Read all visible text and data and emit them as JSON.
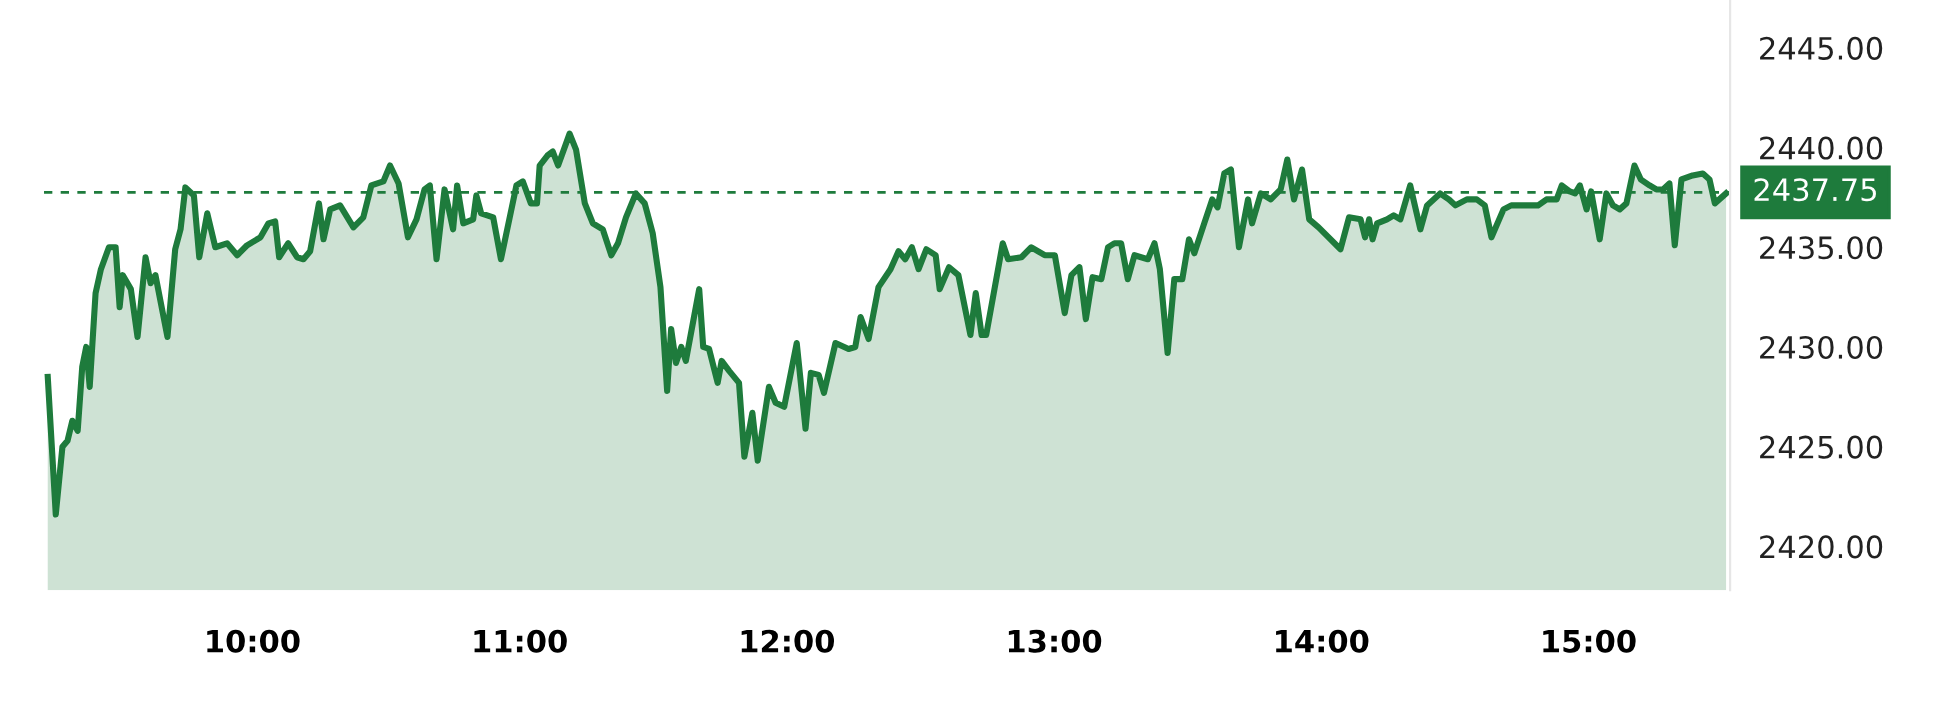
{
  "chart_data": {
    "type": "area",
    "x": [
      9.234,
      9.264,
      9.289,
      9.308,
      9.326,
      9.346,
      9.363,
      9.378,
      9.391,
      9.413,
      9.433,
      9.463,
      9.488,
      9.503,
      9.515,
      9.545,
      9.57,
      9.6,
      9.619,
      9.637,
      9.682,
      9.711,
      9.731,
      9.749,
      9.781,
      9.801,
      9.831,
      9.861,
      9.905,
      9.943,
      9.98,
      10.03,
      10.06,
      10.085,
      10.1,
      10.134,
      10.167,
      10.191,
      10.216,
      10.249,
      10.266,
      10.291,
      10.328,
      10.378,
      10.415,
      10.445,
      10.49,
      10.515,
      10.547,
      10.582,
      10.614,
      10.644,
      10.664,
      10.689,
      10.719,
      10.751,
      10.766,
      10.789,
      10.826,
      10.838,
      10.856,
      10.901,
      10.93,
      10.988,
      11.012,
      11.042,
      11.065,
      11.075,
      11.104,
      11.124,
      11.144,
      11.187,
      11.211,
      11.244,
      11.274,
      11.311,
      11.343,
      11.368,
      11.398,
      11.435,
      11.468,
      11.498,
      11.527,
      11.552,
      11.567,
      11.585,
      11.605,
      11.622,
      11.672,
      11.687,
      11.709,
      11.741,
      11.756,
      11.784,
      11.821,
      11.841,
      11.871,
      11.891,
      11.933,
      11.958,
      11.99,
      12.037,
      12.07,
      12.09,
      12.119,
      12.139,
      12.182,
      12.231,
      12.256,
      12.276,
      12.306,
      12.343,
      12.388,
      12.418,
      12.443,
      12.468,
      12.493,
      12.522,
      12.557,
      12.572,
      12.607,
      12.642,
      12.687,
      12.707,
      12.729,
      12.746,
      12.808,
      12.828,
      12.878,
      12.915,
      12.965,
      13.003,
      13.04,
      13.065,
      13.095,
      13.119,
      13.144,
      13.177,
      13.202,
      13.226,
      13.251,
      13.276,
      13.301,
      13.351,
      13.376,
      13.396,
      13.425,
      13.45,
      13.48,
      13.505,
      13.525,
      13.562,
      13.592,
      13.612,
      13.637,
      13.662,
      13.692,
      13.726,
      13.741,
      13.774,
      13.811,
      13.848,
      13.873,
      13.898,
      13.928,
      13.955,
      13.99,
      14.072,
      14.104,
      14.147,
      14.164,
      14.179,
      14.192,
      14.209,
      14.246,
      14.271,
      14.296,
      14.333,
      14.371,
      14.396,
      14.445,
      14.478,
      14.502,
      14.545,
      14.582,
      14.612,
      14.637,
      14.682,
      14.711,
      14.781,
      14.811,
      14.843,
      14.881,
      14.9,
      14.93,
      14.95,
      14.968,
      14.993,
      15.01,
      15.042,
      15.067,
      15.092,
      15.117,
      15.142,
      15.172,
      15.196,
      15.229,
      15.254,
      15.279,
      15.303,
      15.323,
      15.348,
      15.39,
      15.428,
      15.453,
      15.473,
      15.515
    ],
    "series": [
      {
        "color": "#1e7b3c",
        "values": [
          2428.5,
          2421.6,
          2425.0,
          2425.3,
          2426.3,
          2425.8,
          2429.0,
          2430.0,
          2428.0,
          2432.7,
          2433.9,
          2435.0,
          2435.0,
          2432.0,
          2433.6,
          2432.9,
          2430.5,
          2434.5,
          2433.2,
          2433.6,
          2430.5,
          2434.9,
          2435.9,
          2438.0,
          2437.6,
          2434.5,
          2436.7,
          2435.0,
          2435.2,
          2434.6,
          2435.1,
          2435.5,
          2436.2,
          2436.3,
          2434.5,
          2435.2,
          2434.5,
          2434.4,
          2434.8,
          2437.2,
          2435.4,
          2436.9,
          2437.1,
          2436.0,
          2436.5,
          2438.1,
          2438.3,
          2439.1,
          2438.2,
          2435.5,
          2436.4,
          2437.9,
          2438.1,
          2434.4,
          2437.9,
          2435.9,
          2438.1,
          2436.2,
          2436.4,
          2437.6,
          2436.7,
          2436.5,
          2434.4,
          2438.1,
          2438.3,
          2437.2,
          2437.2,
          2439.1,
          2439.6,
          2439.8,
          2439.1,
          2440.7,
          2439.9,
          2437.2,
          2436.2,
          2435.9,
          2434.6,
          2435.2,
          2436.5,
          2437.7,
          2437.2,
          2435.7,
          2433.0,
          2427.8,
          2430.9,
          2429.2,
          2430.0,
          2429.3,
          2432.9,
          2430.0,
          2429.9,
          2428.2,
          2429.3,
          2428.8,
          2428.2,
          2424.5,
          2426.7,
          2424.3,
          2428.0,
          2427.2,
          2427.0,
          2430.2,
          2425.9,
          2428.7,
          2428.6,
          2427.7,
          2430.2,
          2429.9,
          2430.0,
          2431.5,
          2430.4,
          2433.0,
          2433.9,
          2434.8,
          2434.4,
          2435.0,
          2433.9,
          2434.9,
          2434.6,
          2432.9,
          2434.0,
          2433.6,
          2430.6,
          2432.7,
          2430.6,
          2430.6,
          2435.2,
          2434.4,
          2434.5,
          2435.0,
          2434.6,
          2434.6,
          2431.7,
          2433.6,
          2434.0,
          2431.4,
          2433.5,
          2433.4,
          2435.0,
          2435.2,
          2435.2,
          2433.4,
          2434.6,
          2434.4,
          2435.2,
          2433.9,
          2429.7,
          2433.4,
          2433.4,
          2435.4,
          2434.7,
          2436.2,
          2437.4,
          2437.0,
          2438.7,
          2438.9,
          2435.0,
          2437.4,
          2436.2,
          2437.7,
          2437.4,
          2437.9,
          2439.4,
          2437.4,
          2438.9,
          2436.4,
          2436.0,
          2434.9,
          2436.5,
          2436.4,
          2435.5,
          2436.4,
          2435.4,
          2436.2,
          2436.4,
          2436.6,
          2436.4,
          2438.1,
          2435.9,
          2437.1,
          2437.7,
          2437.4,
          2437.1,
          2437.4,
          2437.4,
          2437.1,
          2435.5,
          2436.9,
          2437.1,
          2437.1,
          2437.1,
          2437.4,
          2437.4,
          2438.1,
          2437.8,
          2437.7,
          2438.1,
          2436.9,
          2437.8,
          2435.4,
          2437.7,
          2437.1,
          2436.9,
          2437.2,
          2439.1,
          2438.4,
          2438.1,
          2437.9,
          2437.9,
          2438.2,
          2435.1,
          2438.4,
          2438.6,
          2438.7,
          2438.4,
          2437.2,
          2437.7
        ]
      }
    ],
    "xlim": [
      9.22,
      15.53
    ],
    "xticks": [
      {
        "value": 10,
        "label": "10:00"
      },
      {
        "value": 11,
        "label": "11:00"
      },
      {
        "value": 12,
        "label": "12:00"
      },
      {
        "value": 13,
        "label": "13:00"
      },
      {
        "value": 14,
        "label": "14:00"
      },
      {
        "value": 15,
        "label": "15:00"
      }
    ],
    "ylim": [
      2417.8,
      2447.4
    ],
    "yticks": [
      {
        "value": 2420,
        "label": "2420.00"
      },
      {
        "value": 2425,
        "label": "2425.00"
      },
      {
        "value": 2430,
        "label": "2430.00"
      },
      {
        "value": 2435,
        "label": "2435.00"
      },
      {
        "value": 2440,
        "label": "2440.00"
      },
      {
        "value": 2445,
        "label": "2445.00"
      }
    ],
    "ref_lines": [
      {
        "axis": "y",
        "value": 2437.75,
        "label": "2437.75",
        "color": "#1e7b3c",
        "line_style": "dashed"
      }
    ],
    "grid": false,
    "legend": false
  }
}
